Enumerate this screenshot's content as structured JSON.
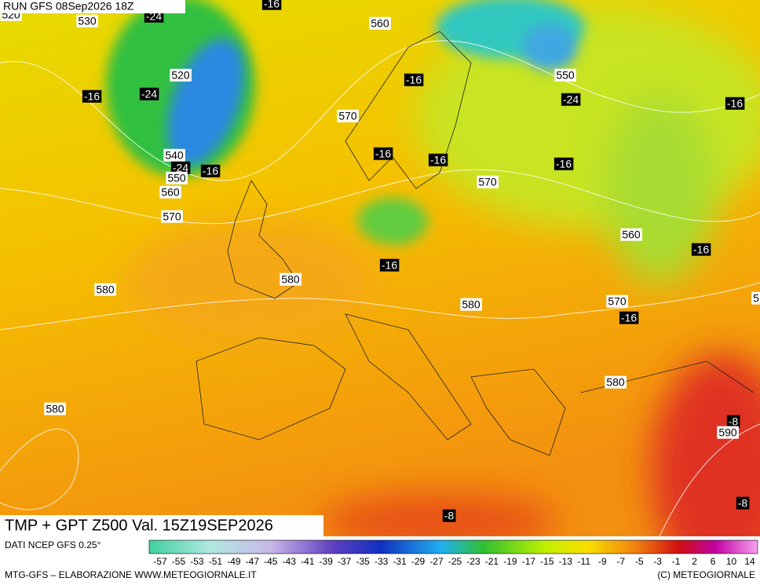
{
  "header": {
    "run": "RUN GFS 08Sep2026 18Z"
  },
  "labels": [
    {
      "text": "520"
    },
    {
      "text": "530"
    },
    {
      "text": "-24"
    },
    {
      "text": "-16"
    },
    {
      "text": "560"
    },
    {
      "text": "520"
    },
    {
      "text": "-16"
    },
    {
      "text": "550"
    },
    {
      "text": "-16"
    },
    {
      "text": "-24"
    },
    {
      "text": "-24"
    },
    {
      "text": "-16"
    },
    {
      "text": "570"
    },
    {
      "text": "-16"
    },
    {
      "text": "-16"
    },
    {
      "text": "-16"
    },
    {
      "text": "540"
    },
    {
      "text": "-24"
    },
    {
      "text": "-16"
    },
    {
      "text": "550"
    },
    {
      "text": "570"
    },
    {
      "text": "560"
    },
    {
      "text": "570"
    },
    {
      "text": "560"
    },
    {
      "text": "-16"
    },
    {
      "text": "-16"
    },
    {
      "text": "580"
    },
    {
      "text": "580"
    },
    {
      "text": "570"
    },
    {
      "text": "580"
    },
    {
      "text": "-16"
    },
    {
      "text": "5"
    },
    {
      "text": "580"
    },
    {
      "text": "580"
    },
    {
      "text": "-8"
    },
    {
      "text": "590"
    },
    {
      "text": "-8"
    },
    {
      "text": "-8"
    }
  ],
  "footer": {
    "title": "TMP + GPT Z500 Val. 15Z19SEP2026",
    "source": "DATI NCEP GFS 0.25°",
    "credit": "MTG-GFS – ELABORAZIONE WWW.METEOGIORNALE.IT",
    "copyright": "(C) METEOGIORNALE"
  },
  "colorbar": {
    "labels": [
      -57,
      -55,
      -53,
      -51,
      -49,
      -47,
      -45,
      -43,
      -41,
      -39,
      -37,
      -35,
      -33,
      -31,
      -29,
      -27,
      -25,
      -23,
      -21,
      -19,
      -17,
      -15,
      -13,
      -11,
      -9,
      -7,
      -5,
      -3,
      -1,
      2,
      6,
      10,
      14
    ]
  }
}
